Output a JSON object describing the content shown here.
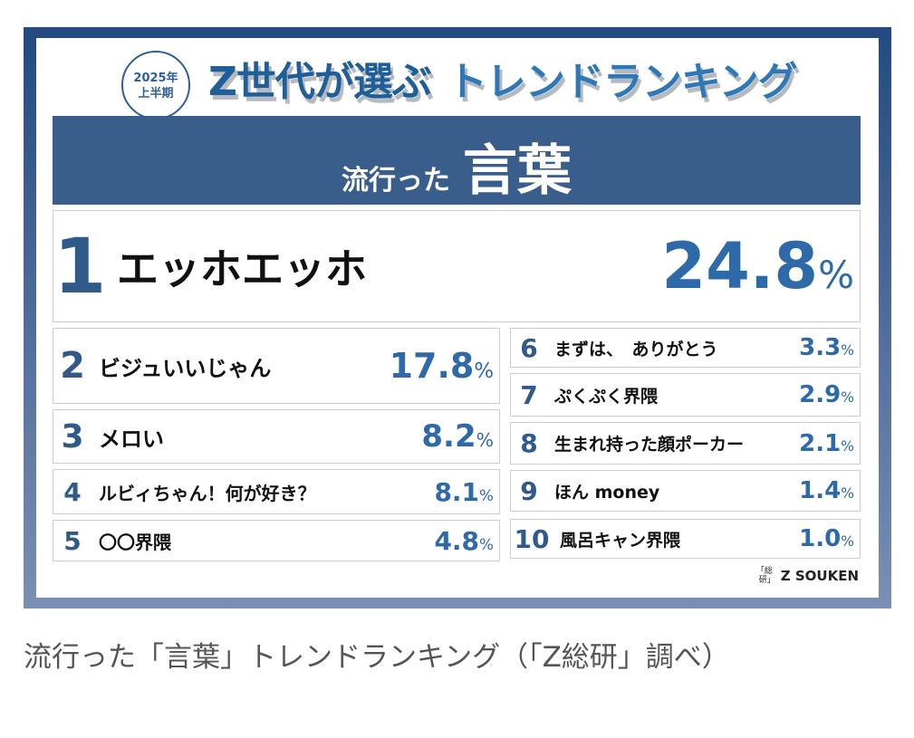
{
  "header": {
    "badge_line1": "2025年",
    "badge_line2": "上半期",
    "title_part1": "Z世代が選ぶ",
    "title_part2": "トレンドランキング"
  },
  "band": {
    "small": "流行った",
    "large": "言葉"
  },
  "percent_sign": "%",
  "colors": {
    "frame": "#234a80",
    "band": "#3a5e8b",
    "rank": "#2f5a8a",
    "percent": "#2f6aa8"
  },
  "chart_data": {
    "type": "table",
    "columns": [
      "rank",
      "word",
      "percent"
    ],
    "rows": [
      {
        "rank": "1",
        "label": "エッホエッホ",
        "value": "24.8"
      },
      {
        "rank": "2",
        "label": "ビジュいいじゃん",
        "value": "17.8"
      },
      {
        "rank": "3",
        "label": "メロい",
        "value": "8.2"
      },
      {
        "rank": "4",
        "label": "ルビィちゃん！何が好き？",
        "value": "8.1"
      },
      {
        "rank": "5",
        "label": "〇〇界隈",
        "value": "4.8"
      },
      {
        "rank": "6",
        "label": "まずは、　ありがとう",
        "value": "3.3"
      },
      {
        "rank": "7",
        "label": "ぷくぷく界隈",
        "value": "2.9"
      },
      {
        "rank": "8",
        "label": "生まれ持った顔ポーカー",
        "value": "2.1"
      },
      {
        "rank": "9",
        "label": "ほん money",
        "value": "1.4"
      },
      {
        "rank": "10",
        "label": "風呂キャン界隈",
        "value": "1.0"
      }
    ]
  },
  "logo": {
    "kanji": "「総研」",
    "text": "Z SOUKEN"
  },
  "caption": "流行った「言葉」トレンドランキング（「Z総研」調べ）"
}
